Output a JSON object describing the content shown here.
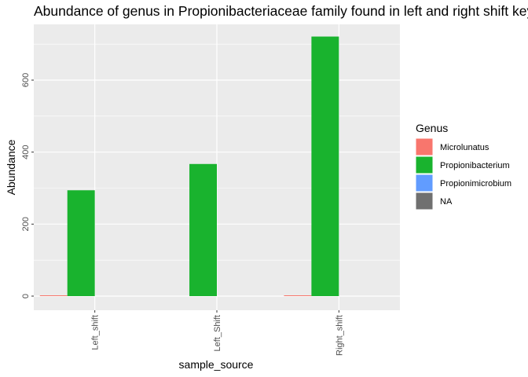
{
  "chart_data": {
    "type": "bar",
    "title": "Abundance of genus in Propionibacteriaceae family found in left and right shift keys",
    "xlabel": "sample_source",
    "ylabel": "Abundance",
    "categories": [
      "Left_shift",
      "Left_Shift",
      "Right_shift"
    ],
    "series": [
      {
        "name": "Microlunatus",
        "color": "#F8766D",
        "values": [
          1,
          0,
          1
        ]
      },
      {
        "name": "Propionibacterium",
        "color": "#19B32E",
        "values": [
          294,
          367,
          721
        ]
      },
      {
        "name": "Propionimicrobium",
        "color": "#619CFF",
        "values": [
          0,
          0,
          0
        ]
      },
      {
        "name": "NA",
        "color": "#707070",
        "values": [
          0,
          0,
          0
        ]
      }
    ],
    "ylim": [
      -40,
      760
    ],
    "yticks": [
      0,
      200,
      400,
      600
    ],
    "grid": true,
    "legend_title": "Genus",
    "legend_position": "right"
  }
}
